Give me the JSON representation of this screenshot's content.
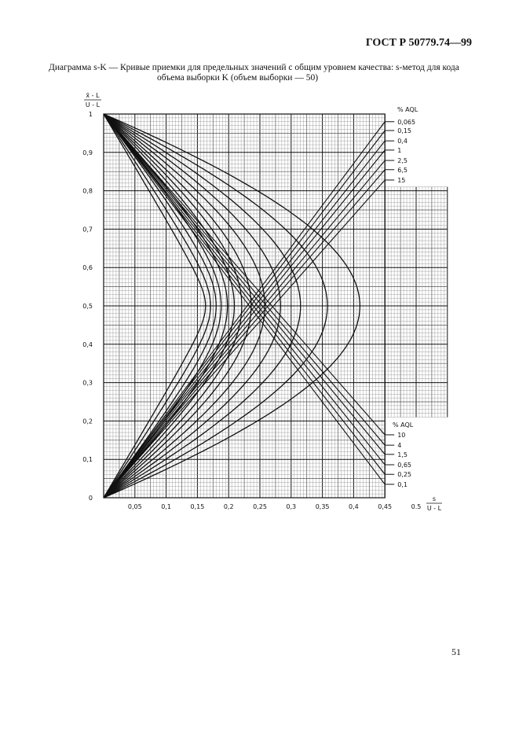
{
  "header": {
    "standard": "ГОСТ Р 50779.74—99"
  },
  "caption": {
    "line1": "Диаграмма s-K — Кривые приемки для предельных значений с общим уровнем качества: s-метод для кода",
    "line2": "объема выборки K (объем выборки — 50)"
  },
  "page_number": "51",
  "chart_data": {
    "type": "line",
    "title": "",
    "ylabel": {
      "numerator": "x̄ - L",
      "denominator": "U - L"
    },
    "xlabel": {
      "numerator": "s",
      "denominator": "U - L"
    },
    "xlim": [
      0,
      0.45
    ],
    "ylim": [
      0,
      1
    ],
    "grid": true,
    "x_ticks": [
      {
        "v": 0.05,
        "label": "0,05"
      },
      {
        "v": 0.1,
        "label": "0,1"
      },
      {
        "v": 0.15,
        "label": "0,15"
      },
      {
        "v": 0.2,
        "label": "0,2"
      },
      {
        "v": 0.25,
        "label": "0,25"
      },
      {
        "v": 0.3,
        "label": "0,3"
      },
      {
        "v": 0.35,
        "label": "0,35"
      },
      {
        "v": 0.4,
        "label": "0,4"
      },
      {
        "v": 0.45,
        "label": "0,45"
      },
      {
        "v": 0.5,
        "label": "0.5"
      }
    ],
    "y_ticks": [
      {
        "v": 0,
        "label": "0"
      },
      {
        "v": 0.1,
        "label": "0,1"
      },
      {
        "v": 0.2,
        "label": "0,2"
      },
      {
        "v": 0.3,
        "label": "0,3"
      },
      {
        "v": 0.4,
        "label": "0,4"
      },
      {
        "v": 0.5,
        "label": "0,5"
      },
      {
        "v": 0.6,
        "label": "0,6"
      },
      {
        "v": 0.7,
        "label": "0,7"
      },
      {
        "v": 0.8,
        "label": "0,8"
      },
      {
        "v": 0.9,
        "label": "0,9"
      },
      {
        "v": 1,
        "label": "1"
      }
    ],
    "legend_title": "% AQL",
    "series": [
      {
        "name": "0,065",
        "s_max": 0.163,
        "line": "rising",
        "line_end": [
          0.45,
          0.98
        ]
      },
      {
        "name": "0,1",
        "s_max": 0.171,
        "line": "falling",
        "line_end": [
          0.45,
          0.035
        ]
      },
      {
        "name": "0,15",
        "s_max": 0.18,
        "line": "rising",
        "line_end": [
          0.45,
          0.957
        ]
      },
      {
        "name": "0,25",
        "s_max": 0.188,
        "line": "falling",
        "line_end": [
          0.45,
          0.061
        ]
      },
      {
        "name": "0,4",
        "s_max": 0.198,
        "line": "rising",
        "line_end": [
          0.45,
          0.93
        ]
      },
      {
        "name": "0,65",
        "s_max": 0.209,
        "line": "falling",
        "line_end": [
          0.45,
          0.086
        ]
      },
      {
        "name": "1",
        "s_max": 0.221,
        "line": "rising",
        "line_end": [
          0.45,
          0.906
        ]
      },
      {
        "name": "1,5",
        "s_max": 0.236,
        "line": "falling",
        "line_end": [
          0.45,
          0.113
        ]
      },
      {
        "name": "2,5",
        "s_max": 0.258,
        "line": "rising",
        "line_end": [
          0.45,
          0.879
        ]
      },
      {
        "name": "4",
        "s_max": 0.283,
        "line": "falling",
        "line_end": [
          0.45,
          0.137
        ]
      },
      {
        "name": "6,5",
        "s_max": 0.315,
        "line": "rising",
        "line_end": [
          0.45,
          0.855
        ]
      },
      {
        "name": "10",
        "s_max": 0.358,
        "line": "falling",
        "line_end": [
          0.45,
          0.164
        ]
      },
      {
        "name": "15",
        "s_max": 0.41,
        "line": "rising",
        "line_end": [
          0.45,
          0.828
        ]
      }
    ]
  }
}
